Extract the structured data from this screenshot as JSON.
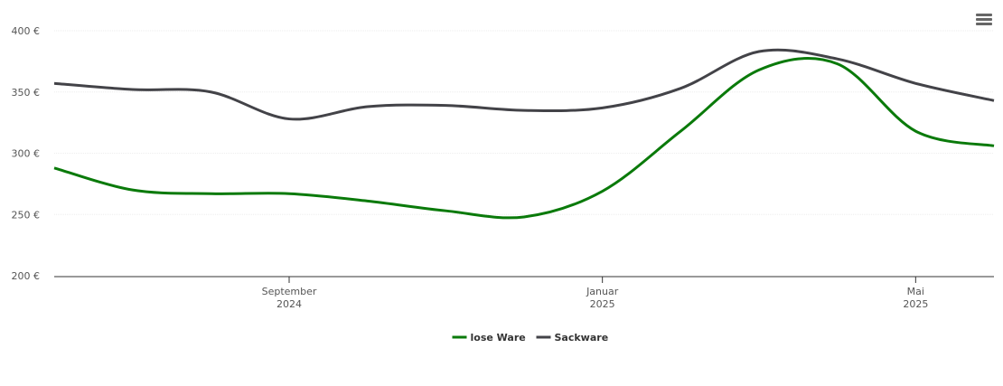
{
  "chart_data": {
    "type": "line",
    "x": [
      "2024-06",
      "2024-07",
      "2024-08",
      "2024-09",
      "2024-10",
      "2024-11",
      "2024-12",
      "2025-01",
      "2025-02",
      "2025-03",
      "2025-04",
      "2025-05",
      "2025-06"
    ],
    "series": [
      {
        "name": "lose Ware",
        "color": "#0a7a0a",
        "values": [
          288,
          270,
          267,
          267,
          261,
          253,
          248,
          269,
          318,
          368,
          373,
          318,
          306
        ]
      },
      {
        "name": "Sackware",
        "color": "#434348",
        "values": [
          357,
          352,
          350,
          328,
          338,
          339,
          335,
          337,
          353,
          383,
          377,
          357,
          343
        ]
      }
    ],
    "xlim": [
      "2024-06",
      "2025-06"
    ],
    "xticks": [
      {
        "value": "2024-09",
        "label": "September 2024"
      },
      {
        "value": "2025-01",
        "label": "Januar 2025"
      },
      {
        "value": "2025-05",
        "label": "Mai 2025"
      }
    ],
    "ylim": [
      200,
      400
    ],
    "yticks": [
      {
        "value": 200,
        "label": "200 €"
      },
      {
        "value": 250,
        "label": "250 €"
      },
      {
        "value": 300,
        "label": "300 €"
      },
      {
        "value": 350,
        "label": "350 €"
      },
      {
        "value": 400,
        "label": "400 €"
      }
    ],
    "grid": true,
    "legend": "bottom"
  }
}
